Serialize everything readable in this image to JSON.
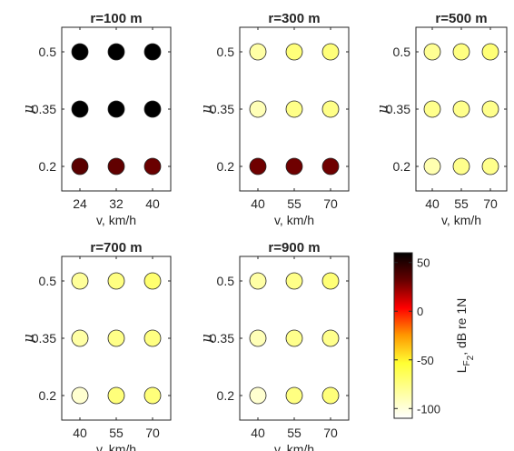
{
  "chart_data": [
    {
      "type": "scatter",
      "title": "r=100 m",
      "x": [
        24,
        32,
        40
      ],
      "y": [
        0.2,
        0.35,
        0.5
      ],
      "xtick_labels": [
        "24",
        "32",
        "40"
      ],
      "ytick_labels": [
        "0.2",
        "0.35",
        "0.5"
      ],
      "xlabel": "v, km/h",
      "ylabel": "μ",
      "values": [
        [
          35,
          33,
          31
        ],
        [
          62,
          62,
          64
        ],
        [
          62,
          64,
          66
        ]
      ]
    },
    {
      "type": "scatter",
      "title": "r=300 m",
      "x": [
        40,
        55,
        70
      ],
      "y": [
        0.2,
        0.35,
        0.5
      ],
      "xtick_labels": [
        "40",
        "55",
        "70"
      ],
      "ytick_labels": [
        "0.2",
        "0.35",
        "0.5"
      ],
      "xlabel": "v, km/h",
      "ylabel": "μ",
      "values": [
        [
          30,
          30,
          30
        ],
        [
          -90,
          -77,
          -77
        ],
        [
          -85,
          -73,
          -73
        ]
      ]
    },
    {
      "type": "scatter",
      "title": "r=500 m",
      "x": [
        40,
        55,
        70
      ],
      "y": [
        0.2,
        0.35,
        0.5
      ],
      "xtick_labels": [
        "40",
        "55",
        "70"
      ],
      "ytick_labels": [
        "0.2",
        "0.35",
        "0.5"
      ],
      "xlabel": "v, km/h",
      "ylabel": "μ",
      "values": [
        [
          -88,
          -78,
          -78
        ],
        [
          -78,
          -78,
          -78
        ],
        [
          -80,
          -75,
          -72
        ]
      ]
    },
    {
      "type": "scatter",
      "title": "r=700 m",
      "x": [
        40,
        55,
        70
      ],
      "y": [
        0.2,
        0.35,
        0.5
      ],
      "xtick_labels": [
        "40",
        "55",
        "70"
      ],
      "ytick_labels": [
        "0.2",
        "0.35",
        "0.5"
      ],
      "xlabel": "v, km/h",
      "ylabel": "μ",
      "values": [
        [
          -97,
          -73,
          -73
        ],
        [
          -85,
          -77,
          -75
        ],
        [
          -82,
          -75,
          -70
        ]
      ]
    },
    {
      "type": "scatter",
      "title": "r=900 m",
      "x": [
        40,
        55,
        70
      ],
      "y": [
        0.2,
        0.35,
        0.5
      ],
      "xtick_labels": [
        "40",
        "55",
        "70"
      ],
      "ytick_labels": [
        "0.2",
        "0.35",
        "0.5"
      ],
      "xlabel": "v, km/h",
      "ylabel": "μ",
      "values": [
        [
          -97,
          -75,
          -73
        ],
        [
          -90,
          -78,
          -78
        ],
        [
          -85,
          -77,
          -72
        ]
      ]
    }
  ],
  "colorbar": {
    "label_main": "L",
    "label_sub1": "F",
    "label_sub2": "2",
    "label_rest": ", dB re 1N",
    "min": -110,
    "max": 60,
    "ticks": [
      50,
      0,
      -50,
      -100
    ],
    "tick_labels": [
      "50",
      "0",
      "-50",
      "-100"
    ],
    "colormap": [
      "#ffffff",
      "#ffff99",
      "#ffff33",
      "#ff9900",
      "#ff0000",
      "#660000",
      "#000000"
    ]
  }
}
